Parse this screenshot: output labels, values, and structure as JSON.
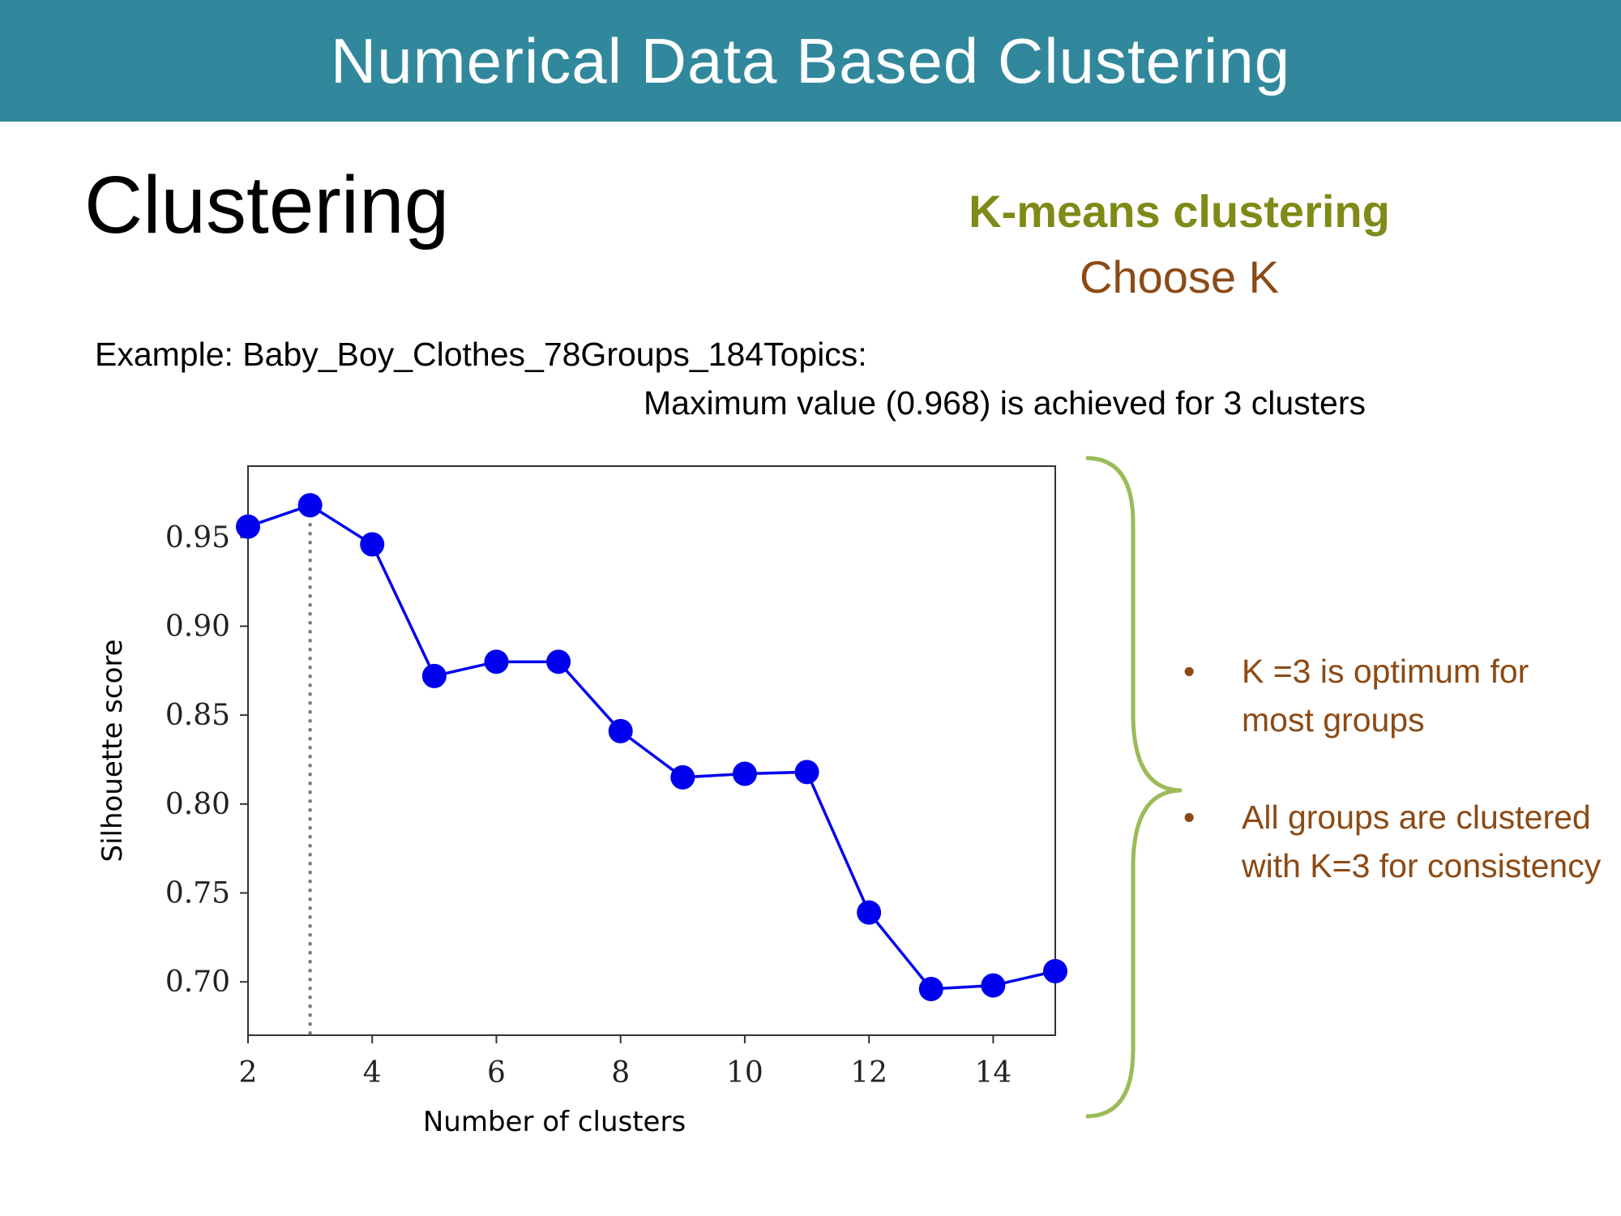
{
  "banner": {
    "title": "Numerical Data Based Clustering"
  },
  "heading": "Clustering",
  "method": {
    "title": "K-means clustering",
    "subtitle": "Choose K"
  },
  "example": {
    "line1": "Example: Baby_Boy_Clothes_78Groups_184Topics:",
    "line2": "Maximum value (0.968) is achieved for 3 clusters"
  },
  "bullets": [
    {
      "marker": "•",
      "text": "K =3 is optimum for most groups"
    },
    {
      "marker": "•",
      "text": "All groups are clustered with K=3 for consistency"
    }
  ],
  "colors": {
    "banner": "#31889c",
    "title_green": "#7f8a17",
    "text_brown": "#8c4a14",
    "line_blue": "#0000ee",
    "brace_green": "#9bbb59"
  },
  "chart_data": {
    "type": "line",
    "title": "",
    "xlabel": "Number of clusters",
    "ylabel": "Silhouette score",
    "xlim": [
      2,
      15
    ],
    "ylim": [
      0.67,
      0.99
    ],
    "xticks": [
      2,
      4,
      6,
      8,
      10,
      12,
      14
    ],
    "yticks": [
      0.7,
      0.75,
      0.8,
      0.85,
      0.9,
      0.95
    ],
    "grid": false,
    "marker_line": {
      "x": 3,
      "style": "dotted"
    },
    "series": [
      {
        "x": [
          2,
          3,
          4,
          5,
          6,
          7,
          8,
          9,
          10,
          11,
          12,
          13,
          14,
          15
        ],
        "values": [
          0.956,
          0.968,
          0.946,
          0.872,
          0.88,
          0.88,
          0.841,
          0.815,
          0.817,
          0.818,
          0.739,
          0.696,
          0.698,
          0.706
        ]
      }
    ]
  }
}
